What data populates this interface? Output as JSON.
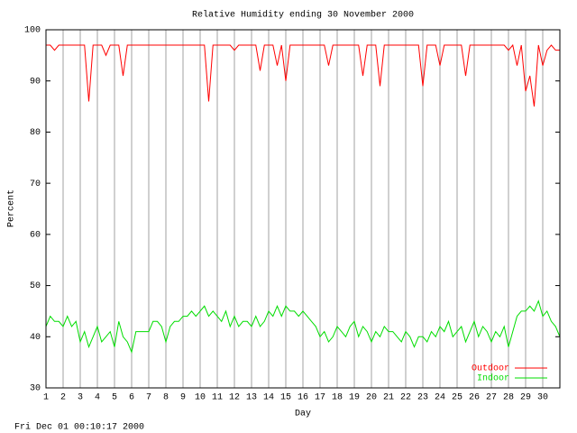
{
  "chart_data": {
    "type": "line",
    "title": "Relative Humidity ending 30 November 2000",
    "x_label": "Day",
    "y_label": "Percent",
    "footer": "Fri Dec 01 00:10:17 2000",
    "xlim": [
      1,
      31
    ],
    "xticks": [
      1,
      2,
      3,
      4,
      5,
      6,
      7,
      8,
      9,
      10,
      11,
      12,
      13,
      14,
      15,
      16,
      17,
      18,
      19,
      20,
      21,
      22,
      23,
      24,
      25,
      26,
      27,
      28,
      29,
      30
    ],
    "ylim": [
      30,
      100
    ],
    "yticks": [
      30,
      40,
      50,
      60,
      70,
      80,
      90,
      100
    ],
    "grid": true,
    "legend": "lower right",
    "x": [
      1,
      1.25,
      1.5,
      1.75,
      2,
      2.25,
      2.5,
      2.75,
      3,
      3.25,
      3.5,
      3.75,
      4,
      4.25,
      4.5,
      4.75,
      5,
      5.25,
      5.5,
      5.75,
      6,
      6.25,
      6.5,
      6.75,
      7,
      7.25,
      7.5,
      7.75,
      8,
      8.25,
      8.5,
      8.75,
      9,
      9.25,
      9.5,
      9.75,
      10,
      10.25,
      10.5,
      10.75,
      11,
      11.25,
      11.5,
      11.75,
      12,
      12.25,
      12.5,
      12.75,
      13,
      13.25,
      13.5,
      13.75,
      14,
      14.25,
      14.5,
      14.75,
      15,
      15.25,
      15.5,
      15.75,
      16,
      16.25,
      16.5,
      16.75,
      17,
      17.25,
      17.5,
      17.75,
      18,
      18.25,
      18.5,
      18.75,
      19,
      19.25,
      19.5,
      19.75,
      20,
      20.25,
      20.5,
      20.75,
      21,
      21.25,
      21.5,
      21.75,
      22,
      22.25,
      22.5,
      22.75,
      23,
      23.25,
      23.5,
      23.75,
      24,
      24.25,
      24.5,
      24.75,
      25,
      25.25,
      25.5,
      25.75,
      26,
      26.25,
      26.5,
      26.75,
      27,
      27.25,
      27.5,
      27.75,
      28,
      28.25,
      28.5,
      28.75,
      29,
      29.25,
      29.5,
      29.75,
      30,
      30.25,
      30.5,
      30.75,
      31
    ],
    "series": [
      {
        "name": "Outdoor",
        "color": "#ff0000",
        "values": [
          97,
          97,
          96,
          97,
          97,
          97,
          97,
          97,
          97,
          97,
          86,
          97,
          97,
          97,
          95,
          97,
          97,
          97,
          91,
          97,
          97,
          97,
          97,
          97,
          97,
          97,
          97,
          97,
          97,
          97,
          97,
          97,
          97,
          97,
          97,
          97,
          97,
          97,
          86,
          97,
          97,
          97,
          97,
          97,
          96,
          97,
          97,
          97,
          97,
          97,
          92,
          97,
          97,
          97,
          93,
          97,
          90,
          97,
          97,
          97,
          97,
          97,
          97,
          97,
          97,
          97,
          93,
          97,
          97,
          97,
          97,
          97,
          97,
          97,
          91,
          97,
          97,
          97,
          89,
          97,
          97,
          97,
          97,
          97,
          97,
          97,
          97,
          97,
          89,
          97,
          97,
          97,
          93,
          97,
          97,
          97,
          97,
          97,
          91,
          97,
          97,
          97,
          97,
          97,
          97,
          97,
          97,
          97,
          96,
          97,
          93,
          97,
          88,
          91,
          85,
          97,
          93,
          96,
          97,
          96,
          96
        ]
      },
      {
        "name": "Indoor",
        "color": "#00dd00",
        "values": [
          42,
          44,
          43,
          43,
          42,
          44,
          42,
          43,
          39,
          41,
          38,
          40,
          42,
          39,
          40,
          41,
          38,
          43,
          40,
          39,
          37,
          41,
          41,
          41,
          41,
          43,
          43,
          42,
          39,
          42,
          43,
          43,
          44,
          44,
          45,
          44,
          45,
          46,
          44,
          45,
          44,
          43,
          45,
          42,
          44,
          42,
          43,
          43,
          42,
          44,
          42,
          43,
          45,
          44,
          46,
          44,
          46,
          45,
          45,
          44,
          45,
          44,
          43,
          42,
          40,
          41,
          39,
          40,
          42,
          41,
          40,
          42,
          43,
          40,
          42,
          41,
          39,
          41,
          40,
          42,
          41,
          41,
          40,
          39,
          41,
          40,
          38,
          40,
          40,
          39,
          41,
          40,
          42,
          41,
          43,
          40,
          41,
          42,
          39,
          41,
          43,
          40,
          42,
          41,
          39,
          41,
          40,
          42,
          38,
          41,
          44,
          45,
          45,
          46,
          45,
          47,
          44,
          45,
          43,
          42,
          40
        ]
      }
    ]
  }
}
